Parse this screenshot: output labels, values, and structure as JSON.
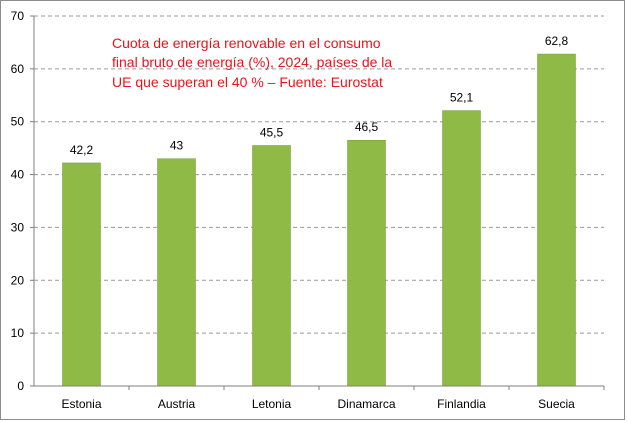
{
  "chart_data": {
    "type": "bar",
    "title_lines": [
      "Cuota de energía renovable en el consumo",
      "final bruto de energía (%), 2024, países de la",
      "UE que superan el 40 % – Fuente: Eurostat"
    ],
    "categories": [
      "Estonia",
      "Austria",
      "Letonia",
      "Dinamarca",
      "Finlandia",
      "Suecia"
    ],
    "values": [
      42.2,
      43,
      45.5,
      46.5,
      52.1,
      62.8
    ],
    "value_labels": [
      "42,2",
      "43",
      "45,5",
      "46,5",
      "52,1",
      "62,8"
    ],
    "yticks": [
      0,
      10,
      20,
      30,
      40,
      50,
      60,
      70
    ],
    "ylim": [
      0,
      70
    ],
    "grid": "horizontal-dashed",
    "colors": {
      "bar": "#8fba45",
      "bar_edge": "#6e9a2f",
      "title": "#e8141b",
      "grid": "#9a9a9a",
      "axis": "#7f7f7f"
    }
  }
}
